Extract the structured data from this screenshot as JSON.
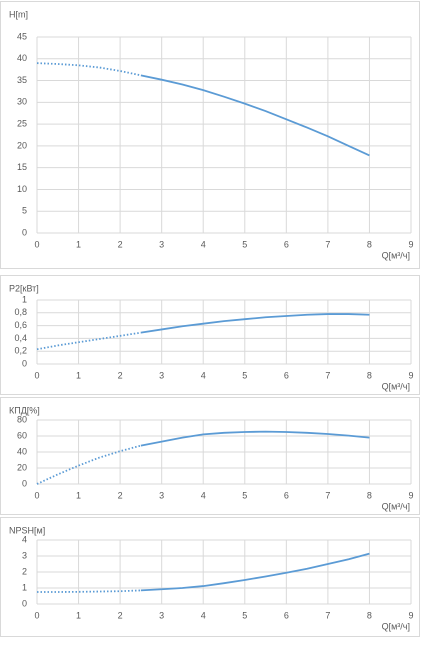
{
  "chart_data": [
    {
      "type": "line",
      "ylabel": "H[m]",
      "xlabel": "Q[м³/ч]",
      "x": [
        0,
        0.5,
        1,
        1.5,
        2,
        2.5,
        3,
        3.5,
        4,
        4.5,
        5,
        5.5,
        6,
        6.5,
        7,
        7.5,
        8
      ],
      "series": [
        {
          "color": "#5b9bd5",
          "dash": true,
          "values": [
            39,
            38.8,
            38.5,
            38,
            37.2,
            36.2,
            null,
            null,
            null,
            null,
            null,
            null,
            null,
            null,
            null,
            null,
            null
          ]
        },
        {
          "color": "#5b9bd5",
          "dash": false,
          "values": [
            null,
            null,
            null,
            null,
            null,
            36.2,
            35.2,
            34.1,
            32.8,
            31.3,
            29.7,
            28,
            26.1,
            24.2,
            22.2,
            20,
            17.8
          ]
        }
      ],
      "xlim": [
        0,
        9
      ],
      "xticks": [
        0,
        1,
        2,
        3,
        4,
        5,
        6,
        7,
        8,
        9
      ],
      "ylim": [
        0,
        45
      ],
      "yticks": [
        0,
        5,
        10,
        15,
        20,
        25,
        30,
        35,
        40,
        45
      ],
      "grid": true
    },
    {
      "type": "line",
      "ylabel": "P2[кВт]",
      "xlabel": "Q[м³/ч]",
      "x": [
        0,
        0.5,
        1,
        1.5,
        2,
        2.5,
        3,
        3.5,
        4,
        4.5,
        5,
        5.5,
        6,
        6.5,
        7,
        7.5,
        8
      ],
      "series": [
        {
          "color": "#5b9bd5",
          "dash": true,
          "values": [
            0.23,
            0.29,
            0.34,
            0.39,
            0.44,
            0.49,
            null,
            null,
            null,
            null,
            null,
            null,
            null,
            null,
            null,
            null,
            null
          ]
        },
        {
          "color": "#5b9bd5",
          "dash": false,
          "values": [
            null,
            null,
            null,
            null,
            null,
            0.49,
            0.54,
            0.59,
            0.63,
            0.67,
            0.7,
            0.73,
            0.75,
            0.77,
            0.78,
            0.78,
            0.77
          ]
        }
      ],
      "xlim": [
        0,
        9
      ],
      "xticks": [
        0,
        1,
        2,
        3,
        4,
        5,
        6,
        7,
        8,
        9
      ],
      "ylim": [
        0,
        1
      ],
      "yticks": [
        0,
        {
          "value": 0.2,
          "label": "0,2"
        },
        {
          "value": 0.4,
          "label": "0,4"
        },
        {
          "value": 0.6,
          "label": "0,6"
        },
        {
          "value": 0.8,
          "label": "0,8"
        },
        1
      ],
      "grid": true
    },
    {
      "type": "line",
      "ylabel": "КПД[%]",
      "xlabel": "Q[м³/ч]",
      "x": [
        0,
        0.5,
        1,
        1.5,
        2,
        2.5,
        3,
        3.5,
        4,
        4.5,
        5,
        5.5,
        6,
        6.5,
        7,
        7.5,
        8
      ],
      "series": [
        {
          "color": "#5b9bd5",
          "dash": true,
          "values": [
            0,
            12,
            23,
            33,
            41,
            48,
            null,
            null,
            null,
            null,
            null,
            null,
            null,
            null,
            null,
            null,
            null
          ]
        },
        {
          "color": "#5b9bd5",
          "dash": false,
          "values": [
            null,
            null,
            null,
            null,
            null,
            48,
            53,
            58,
            62,
            64,
            65,
            65.5,
            65,
            64,
            62.5,
            60.5,
            58
          ]
        }
      ],
      "xlim": [
        0,
        9
      ],
      "xticks": [
        0,
        1,
        2,
        3,
        4,
        5,
        6,
        7,
        8,
        9
      ],
      "ylim": [
        0,
        80
      ],
      "yticks": [
        0,
        20,
        40,
        60,
        80
      ],
      "grid": true
    },
    {
      "type": "line",
      "ylabel": "NPSH[м]",
      "xlabel": "Q[м³/ч]",
      "x": [
        0,
        0.5,
        1,
        1.5,
        2,
        2.5,
        3,
        3.5,
        4,
        4.5,
        5,
        5.5,
        6,
        6.5,
        7,
        7.5,
        8
      ],
      "series": [
        {
          "color": "#5b9bd5",
          "dash": true,
          "values": [
            0.75,
            0.75,
            0.76,
            0.78,
            0.8,
            0.85,
            null,
            null,
            null,
            null,
            null,
            null,
            null,
            null,
            null,
            null,
            null
          ]
        },
        {
          "color": "#5b9bd5",
          "dash": false,
          "values": [
            null,
            null,
            null,
            null,
            null,
            0.85,
            0.92,
            1.0,
            1.12,
            1.3,
            1.5,
            1.72,
            1.95,
            2.2,
            2.5,
            2.8,
            3.15
          ]
        }
      ],
      "xlim": [
        0,
        9
      ],
      "xticks": [
        0,
        1,
        2,
        3,
        4,
        5,
        6,
        7,
        8,
        9
      ],
      "ylim": [
        0,
        4
      ],
      "yticks": [
        0,
        1,
        2,
        3,
        4
      ],
      "grid": true
    }
  ]
}
